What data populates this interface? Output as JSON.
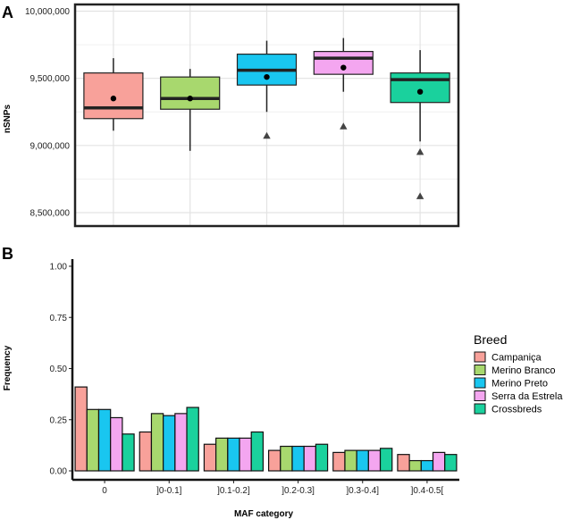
{
  "panels": {
    "a_label": "A",
    "b_label": "B"
  },
  "chart_data": [
    {
      "type": "box",
      "panel": "A",
      "ylabel": "nSNPs",
      "xlabel": "",
      "ylim": [
        8400000,
        10050000
      ],
      "y_ticks": [
        8500000,
        9000000,
        9500000,
        10000000
      ],
      "y_tick_labels": [
        "8,500,000",
        "9,000,000",
        "9,500,000",
        "10,000,000"
      ],
      "boxes": [
        {
          "name": "Campaniça",
          "color": "#F8A19A",
          "q1": 9200000,
          "median": 9280000,
          "q3": 9540000,
          "whisker_low": 9110000,
          "whisker_high": 9650000,
          "mean": 9350000,
          "outliers": []
        },
        {
          "name": "Merino Branco",
          "color": "#A8D86E",
          "q1": 9270000,
          "median": 9350000,
          "q3": 9510000,
          "whisker_low": 8960000,
          "whisker_high": 9570000,
          "mean": 9350000,
          "outliers": []
        },
        {
          "name": "Merino Preto",
          "color": "#19C6F0",
          "q1": 9450000,
          "median": 9560000,
          "q3": 9680000,
          "whisker_low": 9250000,
          "whisker_high": 9780000,
          "mean": 9510000,
          "outliers": [
            9070000
          ]
        },
        {
          "name": "Serra da Estrela",
          "color": "#F4A6F0",
          "q1": 9530000,
          "median": 9650000,
          "q3": 9700000,
          "whisker_low": 9400000,
          "whisker_high": 9800000,
          "mean": 9580000,
          "outliers": [
            9140000
          ]
        },
        {
          "name": "Crossbreds",
          "color": "#1AD19D",
          "q1": 9320000,
          "median": 9490000,
          "q3": 9540000,
          "whisker_low": 9030000,
          "whisker_high": 9710000,
          "mean": 9400000,
          "outliers": [
            8950000,
            8620000
          ]
        }
      ]
    },
    {
      "type": "bar",
      "panel": "B",
      "xlabel": "MAF category",
      "ylabel": "Frequency",
      "ylim": [
        0,
        1.0
      ],
      "y_ticks": [
        0,
        0.25,
        0.5,
        0.75,
        1.0
      ],
      "y_tick_labels": [
        "0.00",
        "0.25",
        "0.50",
        "0.75",
        "1.00"
      ],
      "categories": [
        "0",
        "]0-0.1]",
        "]0.1-0.2]",
        "]0.2-0.3]",
        "]0.3-0.4]",
        "]0.4-0.5["
      ],
      "series": [
        {
          "name": "Campaniça",
          "color": "#F8A19A",
          "values": [
            0.41,
            0.19,
            0.13,
            0.1,
            0.09,
            0.08
          ]
        },
        {
          "name": "Merino Branco",
          "color": "#A8D86E",
          "values": [
            0.3,
            0.28,
            0.16,
            0.12,
            0.1,
            0.05
          ]
        },
        {
          "name": "Merino Preto",
          "color": "#19C6F0",
          "values": [
            0.3,
            0.27,
            0.16,
            0.12,
            0.1,
            0.05
          ]
        },
        {
          "name": "Serra da Estrela",
          "color": "#F4A6F0",
          "values": [
            0.26,
            0.28,
            0.16,
            0.12,
            0.1,
            0.09
          ]
        },
        {
          "name": "Crossbreds",
          "color": "#1AD19D",
          "values": [
            0.18,
            0.31,
            0.19,
            0.13,
            0.11,
            0.08
          ]
        }
      ],
      "legend": {
        "title": "Breed",
        "position": "right"
      }
    }
  ]
}
